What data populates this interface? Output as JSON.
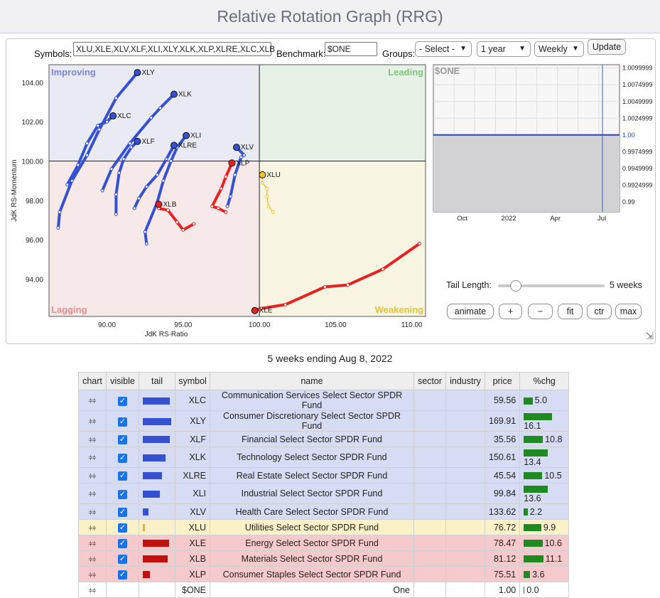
{
  "title": "Relative Rotation Graph (RRG)",
  "controls": {
    "symbols_label": "Symbols:",
    "symbols_value": "XLU,XLE,XLV,XLF,XLI,XLY,XLK,XLP,XLRE,XLC,XLB",
    "benchmark_label": "Benchmark:",
    "benchmark_value": "$ONE",
    "groups_label": "Groups:",
    "groups_value": "- Select -",
    "period_value": "1 year",
    "frequency_value": "Weekly",
    "update_label": "Update",
    "tail_length_label": "Tail Length:",
    "tail_length_value": "5 weeks",
    "tail_length_fraction": 0.16,
    "animate_label": "animate",
    "plus_label": "+",
    "minus_label": "−",
    "fit_label": "fit",
    "ctr_label": "ctr",
    "max_label": "max"
  },
  "chart_data": [
    {
      "type": "scatter",
      "xlabel": "JdK RS-Ratio",
      "ylabel": "JdK RS-Momentum",
      "xlim": [
        86.2,
        110.9
      ],
      "ylim": [
        92.1,
        104.9
      ],
      "xticks": [
        "90.00",
        "95.00",
        "100.00",
        "105.00",
        "110.00"
      ],
      "xtick_values": [
        90,
        95,
        100,
        105,
        110
      ],
      "yticks": [
        "94.00",
        "96.00",
        "98.00",
        "100.00",
        "102.00",
        "104.00"
      ],
      "ytick_values": [
        94,
        96,
        98,
        100,
        102,
        104
      ],
      "quadrants": {
        "improving": "Improving",
        "leading": "Leading",
        "lagging": "Lagging",
        "weakening": "Weakening"
      },
      "quadrant_colors": {
        "improving": "#eaeaf5",
        "leading": "#e7f2e7",
        "lagging": "#f7e9ea",
        "weakening": "#f8f6e3"
      },
      "series": [
        {
          "name": "XLY",
          "color": "#3550d0",
          "points": [
            [
              86.8,
              96.6
            ],
            [
              86.9,
              97.4
            ],
            [
              87.7,
              99.0
            ],
            [
              88.7,
              100.3
            ],
            [
              89.5,
              101.6
            ],
            [
              90.6,
              103.2
            ],
            [
              92.0,
              104.5
            ]
          ]
        },
        {
          "name": "XLK",
          "color": "#3550d0",
          "points": [
            [
              89.7,
              98.5
            ],
            [
              90.3,
              99.6
            ],
            [
              91.5,
              100.9
            ],
            [
              92.9,
              102.2
            ],
            [
              93.5,
              102.7
            ],
            [
              94.4,
              103.4
            ]
          ]
        },
        {
          "name": "XLC",
          "color": "#3550d0",
          "points": [
            [
              87.4,
              98.8
            ],
            [
              88.1,
              99.8
            ],
            [
              88.7,
              100.9
            ],
            [
              89.4,
              101.8
            ],
            [
              90.0,
              102.0
            ],
            [
              90.4,
              102.3
            ]
          ]
        },
        {
          "name": "XLF",
          "color": "#3550d0",
          "points": [
            [
              90.6,
              97.3
            ],
            [
              90.6,
              98.3
            ],
            [
              90.8,
              99.4
            ],
            [
              91.1,
              100.1
            ],
            [
              91.6,
              100.7
            ],
            [
              92.0,
              101.0
            ]
          ]
        },
        {
          "name": "XLI",
          "color": "#3550d0",
          "points": [
            [
              92.6,
              95.8
            ],
            [
              92.5,
              96.4
            ],
            [
              93.3,
              97.9
            ],
            [
              93.7,
              99.0
            ],
            [
              94.2,
              100.0
            ],
            [
              94.6,
              100.7
            ],
            [
              95.2,
              101.3
            ]
          ]
        },
        {
          "name": "XLRE",
          "color": "#3550d0",
          "points": [
            [
              91.8,
              97.6
            ],
            [
              92.1,
              98.1
            ],
            [
              92.6,
              98.7
            ],
            [
              93.3,
              99.3
            ],
            [
              93.9,
              100.1
            ],
            [
              94.4,
              100.8
            ]
          ]
        },
        {
          "name": "XLV",
          "color": "#3550d0",
          "points": [
            [
              97.9,
              97.7
            ],
            [
              98.1,
              98.2
            ],
            [
              98.4,
              99.3
            ],
            [
              98.8,
              100.2
            ],
            [
              99.0,
              100.3
            ],
            [
              98.5,
              100.7
            ]
          ]
        },
        {
          "name": "XLB",
          "color": "#e82222",
          "points": [
            [
              95.7,
              96.8
            ],
            [
              95.0,
              96.5
            ],
            [
              94.6,
              96.9
            ],
            [
              94.0,
              97.5
            ],
            [
              93.4,
              97.6
            ],
            [
              93.4,
              97.8
            ]
          ]
        },
        {
          "name": "XLP",
          "color": "#e82222",
          "points": [
            [
              97.8,
              97.4
            ],
            [
              97.3,
              97.6
            ],
            [
              96.9,
              97.7
            ],
            [
              97.5,
              98.6
            ],
            [
              97.8,
              99.2
            ],
            [
              98.2,
              99.9
            ]
          ]
        },
        {
          "name": "XLU",
          "color": "#f2c12e",
          "points": [
            [
              100.9,
              97.4
            ],
            [
              100.6,
              97.7
            ],
            [
              100.5,
              98.2
            ],
            [
              100.5,
              98.6
            ],
            [
              100.2,
              98.9
            ],
            [
              100.2,
              99.3
            ]
          ]
        },
        {
          "name": "XLE",
          "color": "#e82222",
          "points": [
            [
              110.5,
              95.8
            ],
            [
              108.1,
              94.5
            ],
            [
              105.8,
              93.7
            ],
            [
              104.3,
              93.6
            ],
            [
              101.7,
              92.7
            ],
            [
              100.1,
              92.5
            ],
            [
              99.7,
              92.4
            ]
          ]
        }
      ]
    },
    {
      "type": "area",
      "title": "$ONE",
      "xticks": [
        "Oct",
        "2022",
        "Apr",
        "Jul"
      ],
      "ytick_labels": [
        "1.0099999",
        "1.0074999",
        "1.0049999",
        "1.0024999",
        "1.00",
        "0.9974999",
        "0.9949999",
        "0.9924999",
        "0.99"
      ],
      "ytick_values": [
        1.0099999,
        1.0074999,
        1.0049999,
        1.0024999,
        1.0,
        0.9974999,
        0.9949999,
        0.9924999,
        0.99
      ],
      "ylim": [
        0.9885,
        1.0105
      ],
      "current_value": "1.00",
      "value": 1.0
    }
  ],
  "table": {
    "caption": "5 weeks ending Aug 8, 2022",
    "headers": [
      "chart",
      "visible",
      "tail",
      "symbol",
      "name",
      "sector",
      "industry",
      "price",
      "%chg"
    ],
    "rows": [
      {
        "symbol": "XLC",
        "name": "Communication Services Select Sector SPDR Fund",
        "price": "59.56",
        "chg": "5.0",
        "tail": 0.96,
        "tail_color": "#3550d0",
        "row_color": "#d7dcf5",
        "visible": true
      },
      {
        "symbol": "XLY",
        "name": "Consumer Discretionary Select Sector SPDR Fund",
        "price": "169.91",
        "chg": "16.1",
        "tail": 1.0,
        "tail_color": "#3550d0",
        "row_color": "#d7dcf5",
        "visible": true
      },
      {
        "symbol": "XLF",
        "name": "Financial Select Sector SPDR Fund",
        "price": "35.56",
        "chg": "10.8",
        "tail": 0.96,
        "tail_color": "#3550d0",
        "row_color": "#d7dcf5",
        "visible": true
      },
      {
        "symbol": "XLK",
        "name": "Technology Select Sector SPDR Fund",
        "price": "150.61",
        "chg": "13.4",
        "tail": 0.8,
        "tail_color": "#3550d0",
        "row_color": "#d7dcf5",
        "visible": true
      },
      {
        "symbol": "XLRE",
        "name": "Real Estate Select Sector SPDR Fund",
        "price": "45.54",
        "chg": "10.5",
        "tail": 0.67,
        "tail_color": "#3550d0",
        "row_color": "#d7dcf5",
        "visible": true
      },
      {
        "symbol": "XLI",
        "name": "Industrial Select Sector SPDR Fund",
        "price": "99.84",
        "chg": "13.6",
        "tail": 0.6,
        "tail_color": "#3550d0",
        "row_color": "#d7dcf5",
        "visible": true
      },
      {
        "symbol": "XLV",
        "name": "Health Care Select Sector SPDR Fund",
        "price": "133.62",
        "chg": "2.2",
        "tail": 0.2,
        "tail_color": "#3550d0",
        "row_color": "#d7dcf5",
        "visible": true
      },
      {
        "symbol": "XLU",
        "name": "Utilities Select Sector SPDR Fund",
        "price": "76.72",
        "chg": "9.9",
        "tail": 0.08,
        "tail_color": "#e8b21d",
        "row_color": "#fbf1c8",
        "visible": true
      },
      {
        "symbol": "XLE",
        "name": "Energy Select Sector SPDR Fund",
        "price": "78.47",
        "chg": "10.6",
        "tail": 0.92,
        "tail_color": "#c40f0f",
        "row_color": "#f6c9cc",
        "visible": true
      },
      {
        "symbol": "XLB",
        "name": "Materials Select Sector SPDR Fund",
        "price": "81.12",
        "chg": "11.1",
        "tail": 0.88,
        "tail_color": "#c40f0f",
        "row_color": "#f6c9cc",
        "visible": true
      },
      {
        "symbol": "XLP",
        "name": "Consumer Staples Select Sector SPDR Fund",
        "price": "75.51",
        "chg": "3.6",
        "tail": 0.25,
        "tail_color": "#c40f0f",
        "row_color": "#f6c9cc",
        "visible": true
      },
      {
        "symbol": "$ONE",
        "name": "One",
        "price": "1.00",
        "chg": "0.0",
        "tail": 0,
        "tail_color": "#ffffff",
        "row_color": "#ffffff",
        "visible": false,
        "name_align": "right"
      }
    ]
  }
}
